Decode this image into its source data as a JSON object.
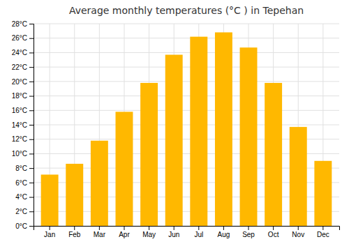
{
  "chart_data": {
    "type": "bar",
    "title": "Average monthly temperatures (°C ) in Tepehan",
    "categories": [
      "Jan",
      "Feb",
      "Mar",
      "Apr",
      "May",
      "Jun",
      "Jul",
      "Aug",
      "Sep",
      "Oct",
      "Nov",
      "Dec"
    ],
    "values": [
      7.1,
      8.6,
      11.8,
      15.8,
      19.8,
      23.7,
      26.2,
      26.8,
      24.7,
      19.8,
      13.7,
      9.0
    ],
    "color": "#FFB800",
    "ylim": [
      0,
      28
    ],
    "yticks": [
      {
        "value": 0,
        "label": "0°C"
      },
      {
        "value": 2,
        "label": "2°C"
      },
      {
        "value": 4,
        "label": "4°C"
      },
      {
        "value": 6,
        "label": "6°C"
      },
      {
        "value": 8,
        "label": "8°C"
      },
      {
        "value": 10,
        "label": "10°C"
      },
      {
        "value": 12,
        "label": "12°C"
      },
      {
        "value": 14,
        "label": "14°C"
      },
      {
        "value": 16,
        "label": "16°C"
      },
      {
        "value": 18,
        "label": "18°C"
      },
      {
        "value": 20,
        "label": "20°C"
      },
      {
        "value": 22,
        "label": "22°C"
      },
      {
        "value": 24,
        "label": "24°C"
      },
      {
        "value": 26,
        "label": "26°C"
      },
      {
        "value": 28,
        "label": "28°C"
      }
    ],
    "grid": true
  }
}
